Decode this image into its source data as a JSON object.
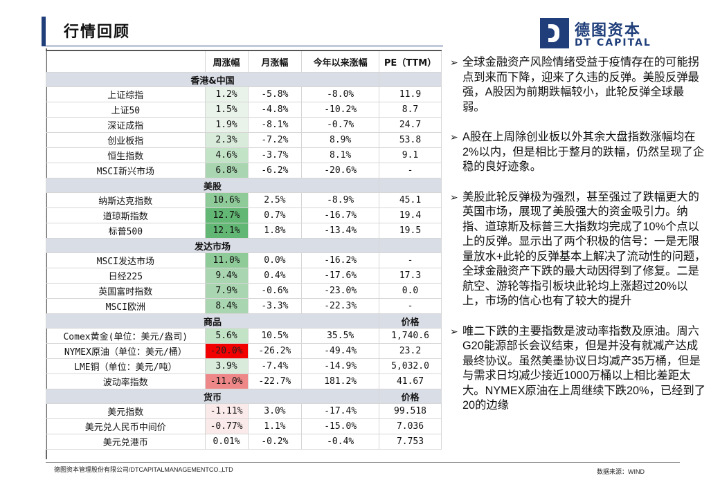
{
  "page_title": "行情回顾",
  "logo": {
    "cn": "德图资本",
    "en": "DT CAPITAL"
  },
  "table": {
    "headers": [
      "",
      "周涨幅",
      "月涨幅",
      "今年以来涨幅",
      "PE（TTM）"
    ],
    "sections": [
      {
        "title": "香港&中国",
        "price_label": "",
        "rows": [
          {
            "name": "上证综指",
            "week": "1.2%",
            "month": "-5.8%",
            "ytd": "-8.0%",
            "pe": "11.9",
            "wc": "g1"
          },
          {
            "name": "上证50",
            "week": "1.5%",
            "month": "-4.8%",
            "ytd": "-10.2%",
            "pe": "8.7",
            "wc": "g1"
          },
          {
            "name": "深证成指",
            "week": "1.9%",
            "month": "-8.1%",
            "ytd": "-0.7%",
            "pe": "24.7",
            "wc": "g1"
          },
          {
            "name": "创业板指",
            "week": "2.3%",
            "month": "-7.2%",
            "ytd": "8.9%",
            "pe": "53.8",
            "wc": "g2"
          },
          {
            "name": "恒生指数",
            "week": "4.6%",
            "month": "-3.7%",
            "ytd": "8.1%",
            "pe": "9.1",
            "wc": "g3"
          },
          {
            "name": "MSCI新兴市场",
            "week": "6.8%",
            "month": "-6.2%",
            "ytd": "-20.6%",
            "pe": "-",
            "wc": "g4"
          }
        ]
      },
      {
        "title": "美股",
        "price_label": "",
        "rows": [
          {
            "name": "纳斯达克指数",
            "week": "10.6%",
            "month": "2.5%",
            "ytd": "-8.9%",
            "pe": "45.1",
            "wc": "g5"
          },
          {
            "name": "道琼斯指数",
            "week": "12.7%",
            "month": "0.7%",
            "ytd": "-16.7%",
            "pe": "19.4",
            "wc": "g6"
          },
          {
            "name": "标普500",
            "week": "12.1%",
            "month": "1.8%",
            "ytd": "-13.4%",
            "pe": "19.5",
            "wc": "g6"
          }
        ]
      },
      {
        "title": "发达市场",
        "price_label": "",
        "rows": [
          {
            "name": "MSCI发达市场",
            "week": "11.0%",
            "month": "0.0%",
            "ytd": "-16.2%",
            "pe": "-",
            "wc": "g5"
          },
          {
            "name": "日经225",
            "week": "9.4%",
            "month": "0.4%",
            "ytd": "-17.6%",
            "pe": "17.3",
            "wc": "g4"
          },
          {
            "name": "英国富时指数",
            "week": "7.9%",
            "month": "-0.6%",
            "ytd": "-23.0%",
            "pe": "0.0",
            "wc": "g4"
          },
          {
            "name": "MSCI欧洲",
            "week": "8.4%",
            "month": "-3.3%",
            "ytd": "-22.3%",
            "pe": "-",
            "wc": "g4"
          }
        ]
      },
      {
        "title": "商品",
        "price_label": "价格",
        "rows": [
          {
            "name": "Comex黄金(单位：美元/盎司)",
            "week": "5.6%",
            "month": "10.5%",
            "ytd": "35.5%",
            "pe": "1,740.6",
            "wc": "g3"
          },
          {
            "name": "NYMEX原油（单位：美元/桶）",
            "week": "-20.0%",
            "month": "-26.2%",
            "ytd": "-49.4%",
            "pe": "23.2",
            "wc": "r4"
          },
          {
            "name": "LME铜（单位：美元/吨）",
            "week": "3.9%",
            "month": "-7.4%",
            "ytd": "-14.9%",
            "pe": "5,032.0",
            "wc": "g2"
          },
          {
            "name": "波动率指数",
            "week": "-11.0%",
            "month": "-22.7%",
            "ytd": "181.2%",
            "pe": "41.67",
            "wc": "r3"
          }
        ]
      },
      {
        "title": "货币",
        "price_label": "价格",
        "rows": [
          {
            "name": "美元指数",
            "week": "-1.11%",
            "month": "3.0%",
            "ytd": "-17.4%",
            "pe": "99.518",
            "wc": "r1"
          },
          {
            "name": "美元兑人民币中间价",
            "week": "-0.77%",
            "month": "1.1%",
            "ytd": "-15.0%",
            "pe": "7.036",
            "wc": "r1"
          },
          {
            "name": "美元兑港币",
            "week": "0.01%",
            "month": "-0.2%",
            "ytd": "-0.4%",
            "pe": "7.753",
            "wc": ""
          }
        ]
      }
    ]
  },
  "bullets": [
    "全球金融资产风险情绪受益于疫情存在的可能拐点到来而下降，迎来了久违的反弹。美股反弹最强，A股因为前期跌幅较小，此轮反弹全球最弱。",
    "A股在上周除创业板以外其余大盘指数涨幅均在2%以内，但是相比于整月的跌幅，仍然呈现了企稳的良好迹象。",
    "美股此轮反弹极为强烈，甚至强过了跌幅更大的英国市场，展现了美股强大的资金吸引力。纳指、道琼斯及标普三大指数均完成了10%个点以上的反弹。显示出了两个积极的信号：一是无限量放水+此轮的反弹基本上解决了流动性的问题，全球金融资产下跌的最大动因得到了修复。二是航空、游轮等指引板块此轮均上涨超过20%以上，市场的信心也有了较大的提升",
    "唯二下跌的主要指数是波动率指数及原油。周六G20能源部长会议结束，但是并没有就减产达成最终协议。虽然美墨协议日均减产35万桶，但是与需求日均减少接近1000万桶以上相比差距太大。NYMEX原油在上周继续下跌20%，已经到了20的边缘"
  ],
  "footer": {
    "company": "德图资本管理股份有限公司/DTCAPITALMANAGEMENTCO.,LTD",
    "source": "数据来源：WIND"
  }
}
